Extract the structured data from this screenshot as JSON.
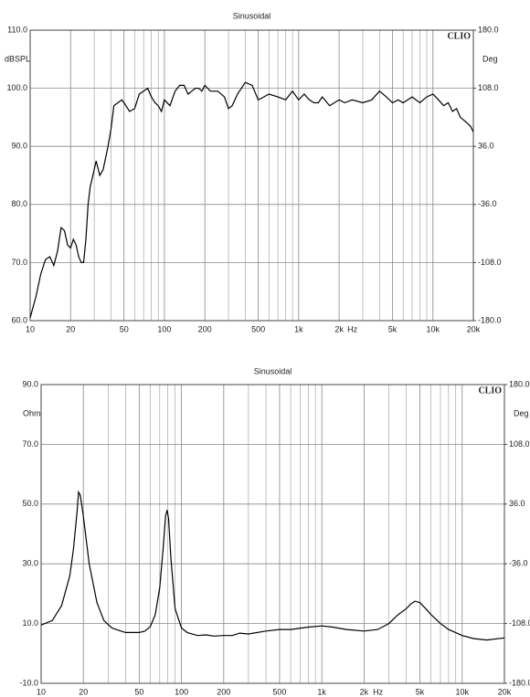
{
  "chart_data": [
    {
      "type": "line",
      "title": "Sinusoidal",
      "y_label": "dBSPL",
      "y2_label": "Deg",
      "x_label": "Hz",
      "annotation": "CLIO",
      "x_scale": "log",
      "grid": true,
      "color": "#000000",
      "xlim": [
        10,
        20000
      ],
      "xticks": [
        10,
        20,
        50,
        100,
        200,
        500,
        {
          "value": 1000,
          "label": "1k"
        },
        {
          "value": 2000,
          "label": "2k"
        },
        {
          "value": 5000,
          "label": "5k"
        },
        {
          "value": 10000,
          "label": "10k"
        },
        {
          "value": 20000,
          "label": "20k"
        }
      ],
      "minor_xticks": [
        30,
        40,
        60,
        70,
        80,
        90,
        300,
        400,
        600,
        700,
        800,
        900,
        3000,
        4000,
        6000,
        7000,
        8000,
        9000
      ],
      "ylim": [
        60,
        110
      ],
      "yticks": [
        {
          "value": 110,
          "label": "110.0"
        },
        {
          "value": 100,
          "label": "100.0"
        },
        {
          "value": 90,
          "label": "90.0"
        },
        {
          "value": 80,
          "label": "80.0"
        },
        {
          "value": 70,
          "label": "70.0"
        },
        {
          "value": 60,
          "label": "60.0"
        }
      ],
      "y2lim": [
        -180,
        180
      ],
      "y2ticks": [
        {
          "value": 180,
          "label": "180.0"
        },
        {
          "value": 108,
          "label": "108.0"
        },
        {
          "value": 36,
          "label": "36.0"
        },
        {
          "value": -36,
          "label": "-36.0"
        },
        {
          "value": -108,
          "label": "-108.0"
        },
        {
          "value": -180,
          "label": "-180.0"
        }
      ],
      "x": [
        10,
        11,
        12,
        13,
        14,
        15,
        16,
        17,
        18,
        19,
        20,
        21,
        22,
        23,
        24,
        25,
        26,
        27,
        28,
        30,
        31,
        33,
        35,
        38,
        40,
        42,
        45,
        48,
        50,
        55,
        60,
        65,
        70,
        75,
        80,
        85,
        90,
        95,
        100,
        110,
        120,
        130,
        140,
        150,
        160,
        170,
        180,
        190,
        200,
        220,
        250,
        280,
        300,
        320,
        350,
        400,
        450,
        500,
        550,
        600,
        700,
        800,
        900,
        1000,
        1100,
        1200,
        1300,
        1400,
        1500,
        1700,
        2000,
        2200,
        2500,
        3000,
        3500,
        4000,
        4500,
        5000,
        5500,
        6000,
        7000,
        8000,
        9000,
        10000,
        11000,
        12000,
        13000,
        14000,
        15000,
        16000,
        17000,
        18000,
        19000,
        20000
      ],
      "values": [
        60.5,
        64,
        68,
        70.5,
        71,
        69.5,
        72,
        76,
        75.5,
        73,
        72.5,
        74,
        73,
        71,
        70,
        70,
        74,
        80,
        83,
        86,
        87.5,
        85,
        86,
        90,
        93,
        97,
        97.5,
        98,
        97.5,
        96,
        96.5,
        99,
        99.5,
        100,
        98.5,
        97.5,
        97,
        96,
        98,
        97,
        99.5,
        100.5,
        100.5,
        99,
        99.5,
        100,
        100,
        99.5,
        100.5,
        99.5,
        99.5,
        98.5,
        96.5,
        97,
        99,
        101,
        100.5,
        98,
        98.5,
        99,
        98.5,
        98,
        99.5,
        98,
        99,
        98,
        97.5,
        97.5,
        98.5,
        97,
        98,
        97.5,
        98,
        97.5,
        98,
        99.5,
        98.5,
        97.5,
        98,
        97.5,
        98.5,
        97.5,
        98.5,
        99,
        98,
        97,
        97.5,
        96,
        96.5,
        95,
        94.5,
        94,
        93.5,
        92.5
      ]
    },
    {
      "type": "line",
      "title": "Sinusoidal",
      "y_label": "Ohm",
      "y2_label": "Deg",
      "x_label": "Hz",
      "annotation": "CLIO",
      "x_scale": "log",
      "grid": true,
      "color": "#000000",
      "xlim": [
        10,
        20000
      ],
      "xticks": [
        10,
        20,
        50,
        100,
        200,
        500,
        {
          "value": 1000,
          "label": "1k"
        },
        {
          "value": 2000,
          "label": "2k"
        },
        {
          "value": 5000,
          "label": "5k"
        },
        {
          "value": 10000,
          "label": "10k"
        },
        {
          "value": 20000,
          "label": "20k"
        }
      ],
      "minor_xticks": [
        30,
        40,
        60,
        70,
        80,
        90,
        300,
        400,
        600,
        700,
        800,
        900,
        3000,
        4000,
        6000,
        7000,
        8000,
        9000
      ],
      "ylim": [
        -10,
        90
      ],
      "yticks": [
        {
          "value": 90,
          "label": "90.0"
        },
        {
          "value": 70,
          "label": "70.0"
        },
        {
          "value": 50,
          "label": "50.0"
        },
        {
          "value": 30,
          "label": "30.0"
        },
        {
          "value": 10,
          "label": "10.0"
        },
        {
          "value": -10,
          "label": "-10.0"
        }
      ],
      "y2lim": [
        -180,
        180
      ],
      "y2ticks": [
        {
          "value": 180,
          "label": "180.0"
        },
        {
          "value": 108,
          "label": "108.0"
        },
        {
          "value": 36,
          "label": "36.0"
        },
        {
          "value": -36,
          "label": "-36.0"
        },
        {
          "value": -108,
          "label": "-108.0"
        },
        {
          "value": -180,
          "label": "-180.0"
        }
      ],
      "x": [
        10,
        12,
        14,
        16,
        17,
        18,
        18.5,
        19,
        20,
        22,
        25,
        28,
        32,
        37,
        40,
        50,
        55,
        60,
        65,
        70,
        74,
        77,
        79,
        81,
        84,
        90,
        100,
        110,
        130,
        150,
        170,
        200,
        230,
        260,
        300,
        400,
        500,
        600,
        800,
        1000,
        1200,
        1500,
        2000,
        2500,
        3000,
        3500,
        4000,
        4300,
        4600,
        5000,
        5500,
        6000,
        7000,
        8000,
        10000,
        12000,
        15000,
        20000
      ],
      "values": [
        9.5,
        11,
        16,
        26,
        35,
        47,
        54,
        53,
        46,
        30,
        17,
        11,
        8.5,
        7.5,
        7,
        7,
        7.5,
        9,
        13,
        22,
        35,
        46,
        48,
        45,
        32,
        15,
        8.5,
        7,
        6,
        6.2,
        5.8,
        6,
        6,
        6.8,
        6.5,
        7.5,
        8,
        8,
        8.8,
        9.2,
        8.8,
        8,
        7.5,
        8,
        10,
        13,
        15,
        16.5,
        17.5,
        17,
        15,
        13,
        10,
        8,
        6,
        5,
        4.5,
        5.2
      ]
    }
  ]
}
